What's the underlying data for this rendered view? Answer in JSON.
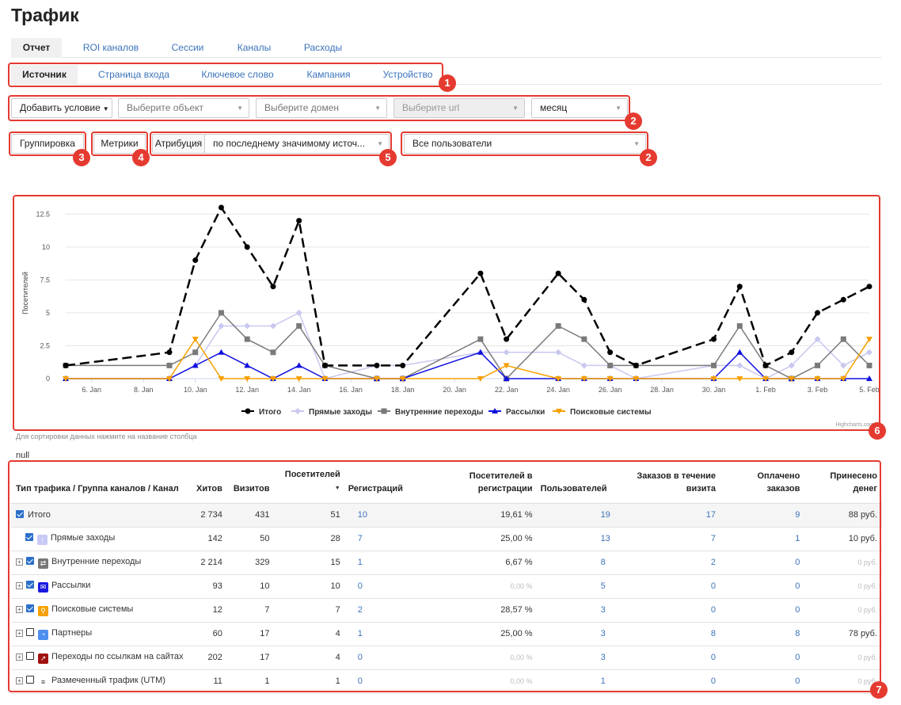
{
  "page_title": "Трафик",
  "main_tabs": [
    {
      "label": "Отчет",
      "active": true
    },
    {
      "label": "ROI каналов",
      "active": false
    },
    {
      "label": "Сессии",
      "active": false
    },
    {
      "label": "Каналы",
      "active": false
    },
    {
      "label": "Расходы",
      "active": false
    }
  ],
  "sub_tabs": [
    {
      "label": "Источник",
      "active": true
    },
    {
      "label": "Страница входа",
      "active": false
    },
    {
      "label": "Ключевое слово",
      "active": false
    },
    {
      "label": "Кампания",
      "active": false
    },
    {
      "label": "Устройство",
      "active": false
    }
  ],
  "filters": {
    "add_condition": "Добавить условие",
    "object_placeholder": "Выберите объект",
    "domain_placeholder": "Выберите домен",
    "url_placeholder": "Выберите url",
    "period": "месяц",
    "grouping_label": "Группировка",
    "metrics_label": "Метрики",
    "attribution_label": "Атрибуция",
    "attribution_value": "по последнему значимому источ...",
    "segment_value": "Все пользователи"
  },
  "badges": [
    "1",
    "2",
    "2",
    "3",
    "4",
    "5",
    "6",
    "7"
  ],
  "accent_colors": {
    "callout": "#e53a30",
    "link": "#3b73b9"
  },
  "chart_data": {
    "type": "line",
    "ylabel": "Посетителей",
    "ylim": [
      0,
      13
    ],
    "yticks": [
      "0",
      "2.5",
      "5",
      "7.5",
      "10",
      "12.5"
    ],
    "ytick_values": [
      0,
      2.5,
      5,
      7.5,
      10,
      12.5
    ],
    "xticks": [
      "6. Jan",
      "8. Jan",
      "10. Jan",
      "12. Jan",
      "14. Jan",
      "16. Jan",
      "18. Jan",
      "20. Jan",
      "22. Jan",
      "24. Jan",
      "26. Jan",
      "28. Jan",
      "30. Jan",
      "1. Feb",
      "3. Feb",
      "5. Feb"
    ],
    "x": [
      "5. Jan",
      "9. Jan",
      "10. Jan",
      "11. Jan",
      "12. Jan",
      "13. Jan",
      "14. Jan",
      "15. Jan",
      "17. Jan",
      "18. Jan",
      "21. Jan",
      "22. Jan",
      "24. Jan",
      "25. Jan",
      "26. Jan",
      "27. Jan",
      "30. Jan",
      "31. Jan",
      "1. Feb",
      "2. Feb",
      "3. Feb",
      "4. Feb",
      "5. Feb"
    ],
    "series": [
      {
        "name": "Итого",
        "color": "#000000",
        "values": [
          1,
          2,
          9,
          13,
          10,
          7,
          12,
          1,
          1,
          1,
          8,
          3,
          8,
          6,
          2,
          1,
          3,
          7,
          1,
          2,
          5,
          6,
          7
        ]
      },
      {
        "name": "Прямые заходы",
        "color": "#c8c8f0",
        "values": [
          0,
          0,
          1,
          4,
          4,
          4,
          5,
          0,
          1,
          1,
          2,
          2,
          2,
          1,
          1,
          0,
          1,
          1,
          0,
          1,
          3,
          1,
          2
        ]
      },
      {
        "name": "Внутренние переходы",
        "color": "#7a7a7a",
        "values": [
          1,
          1,
          2,
          5,
          3,
          2,
          4,
          1,
          0,
          0,
          3,
          0,
          4,
          3,
          1,
          1,
          1,
          4,
          1,
          0,
          1,
          3,
          1
        ]
      },
      {
        "name": "Рассылки",
        "color": "#1010e0",
        "values": [
          0,
          0,
          1,
          2,
          1,
          0,
          1,
          0,
          0,
          0,
          2,
          0,
          0,
          0,
          0,
          0,
          0,
          2,
          0,
          0,
          0,
          0,
          0
        ]
      },
      {
        "name": "Поисковые системы",
        "color": "#f5a000",
        "values": [
          0,
          0,
          3,
          0,
          0,
          0,
          0,
          0,
          0,
          0,
          0,
          1,
          0,
          0,
          0,
          0,
          0,
          0,
          0,
          0,
          0,
          0,
          3
        ]
      }
    ],
    "credits": "Highcharts.com"
  },
  "sort_hint": "Для сортировки данных нажмите на название столбца",
  "null_text": "null",
  "table": {
    "headers": [
      "Тип трафика / Группа каналов / Канал",
      "Хитов",
      "Визитов",
      "Посетителей",
      "Регистраций",
      "Посетителей в регистрации",
      "Пользователей",
      "Заказов в течение визита",
      "Оплачено заказов",
      "Принесено денег"
    ],
    "rows": [
      {
        "name": "Итого",
        "cells": [
          "2 734",
          "431",
          "51",
          "10",
          "19,61 %",
          "19",
          "17",
          "9",
          "88 руб."
        ]
      },
      {
        "name": "Прямые заходы",
        "cells": [
          "142",
          "50",
          "28",
          "7",
          "25,00 %",
          "13",
          "7",
          "1",
          "10 руб."
        ]
      },
      {
        "name": "Внутренние переходы",
        "cells": [
          "2 214",
          "329",
          "15",
          "1",
          "6,67 %",
          "8",
          "2",
          "0",
          "0 руб."
        ]
      },
      {
        "name": "Рассылки",
        "cells": [
          "93",
          "10",
          "10",
          "0",
          "0,00 %",
          "5",
          "0",
          "0",
          "0 руб."
        ]
      },
      {
        "name": "Поисковые системы",
        "cells": [
          "12",
          "7",
          "7",
          "2",
          "28,57 %",
          "3",
          "0",
          "0",
          "0 руб."
        ]
      },
      {
        "name": "Партнеры",
        "cells": [
          "60",
          "17",
          "4",
          "1",
          "25,00 %",
          "3",
          "8",
          "8",
          "78 руб."
        ]
      },
      {
        "name": "Переходы по ссылкам на сайтах",
        "cells": [
          "202",
          "17",
          "4",
          "0",
          "0,00 %",
          "3",
          "0",
          "0",
          "0 руб."
        ]
      },
      {
        "name": "Размеченный трафик (UTM)",
        "cells": [
          "11",
          "1",
          "1",
          "0",
          "0,00 %",
          "1",
          "0",
          "0",
          "0 руб."
        ]
      }
    ]
  }
}
